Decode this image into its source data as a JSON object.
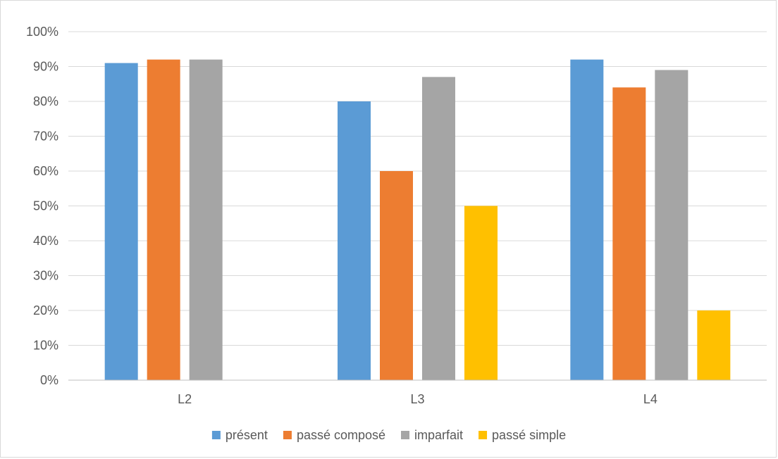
{
  "chart_data": {
    "type": "bar",
    "title": "",
    "xlabel": "",
    "ylabel": "",
    "categories": [
      "L2",
      "L3",
      "L4"
    ],
    "ylim": [
      0,
      100
    ],
    "y_ticks": [
      0,
      10,
      20,
      30,
      40,
      50,
      60,
      70,
      80,
      90,
      100
    ],
    "y_tick_labels": [
      "0%",
      "10%",
      "20%",
      "30%",
      "40%",
      "50%",
      "60%",
      "70%",
      "80%",
      "90%",
      "100%"
    ],
    "grid": true,
    "legend_position": "bottom",
    "series": [
      {
        "name": "présent",
        "color": "#5b9bd5",
        "values": [
          91,
          80,
          92
        ]
      },
      {
        "name": "passé composé",
        "color": "#ed7d31",
        "values": [
          92,
          60,
          84
        ]
      },
      {
        "name": "imparfait",
        "color": "#a5a5a5",
        "values": [
          92,
          87,
          89
        ]
      },
      {
        "name": "passé simple",
        "color": "#ffc000",
        "values": [
          null,
          50,
          20
        ]
      }
    ]
  }
}
